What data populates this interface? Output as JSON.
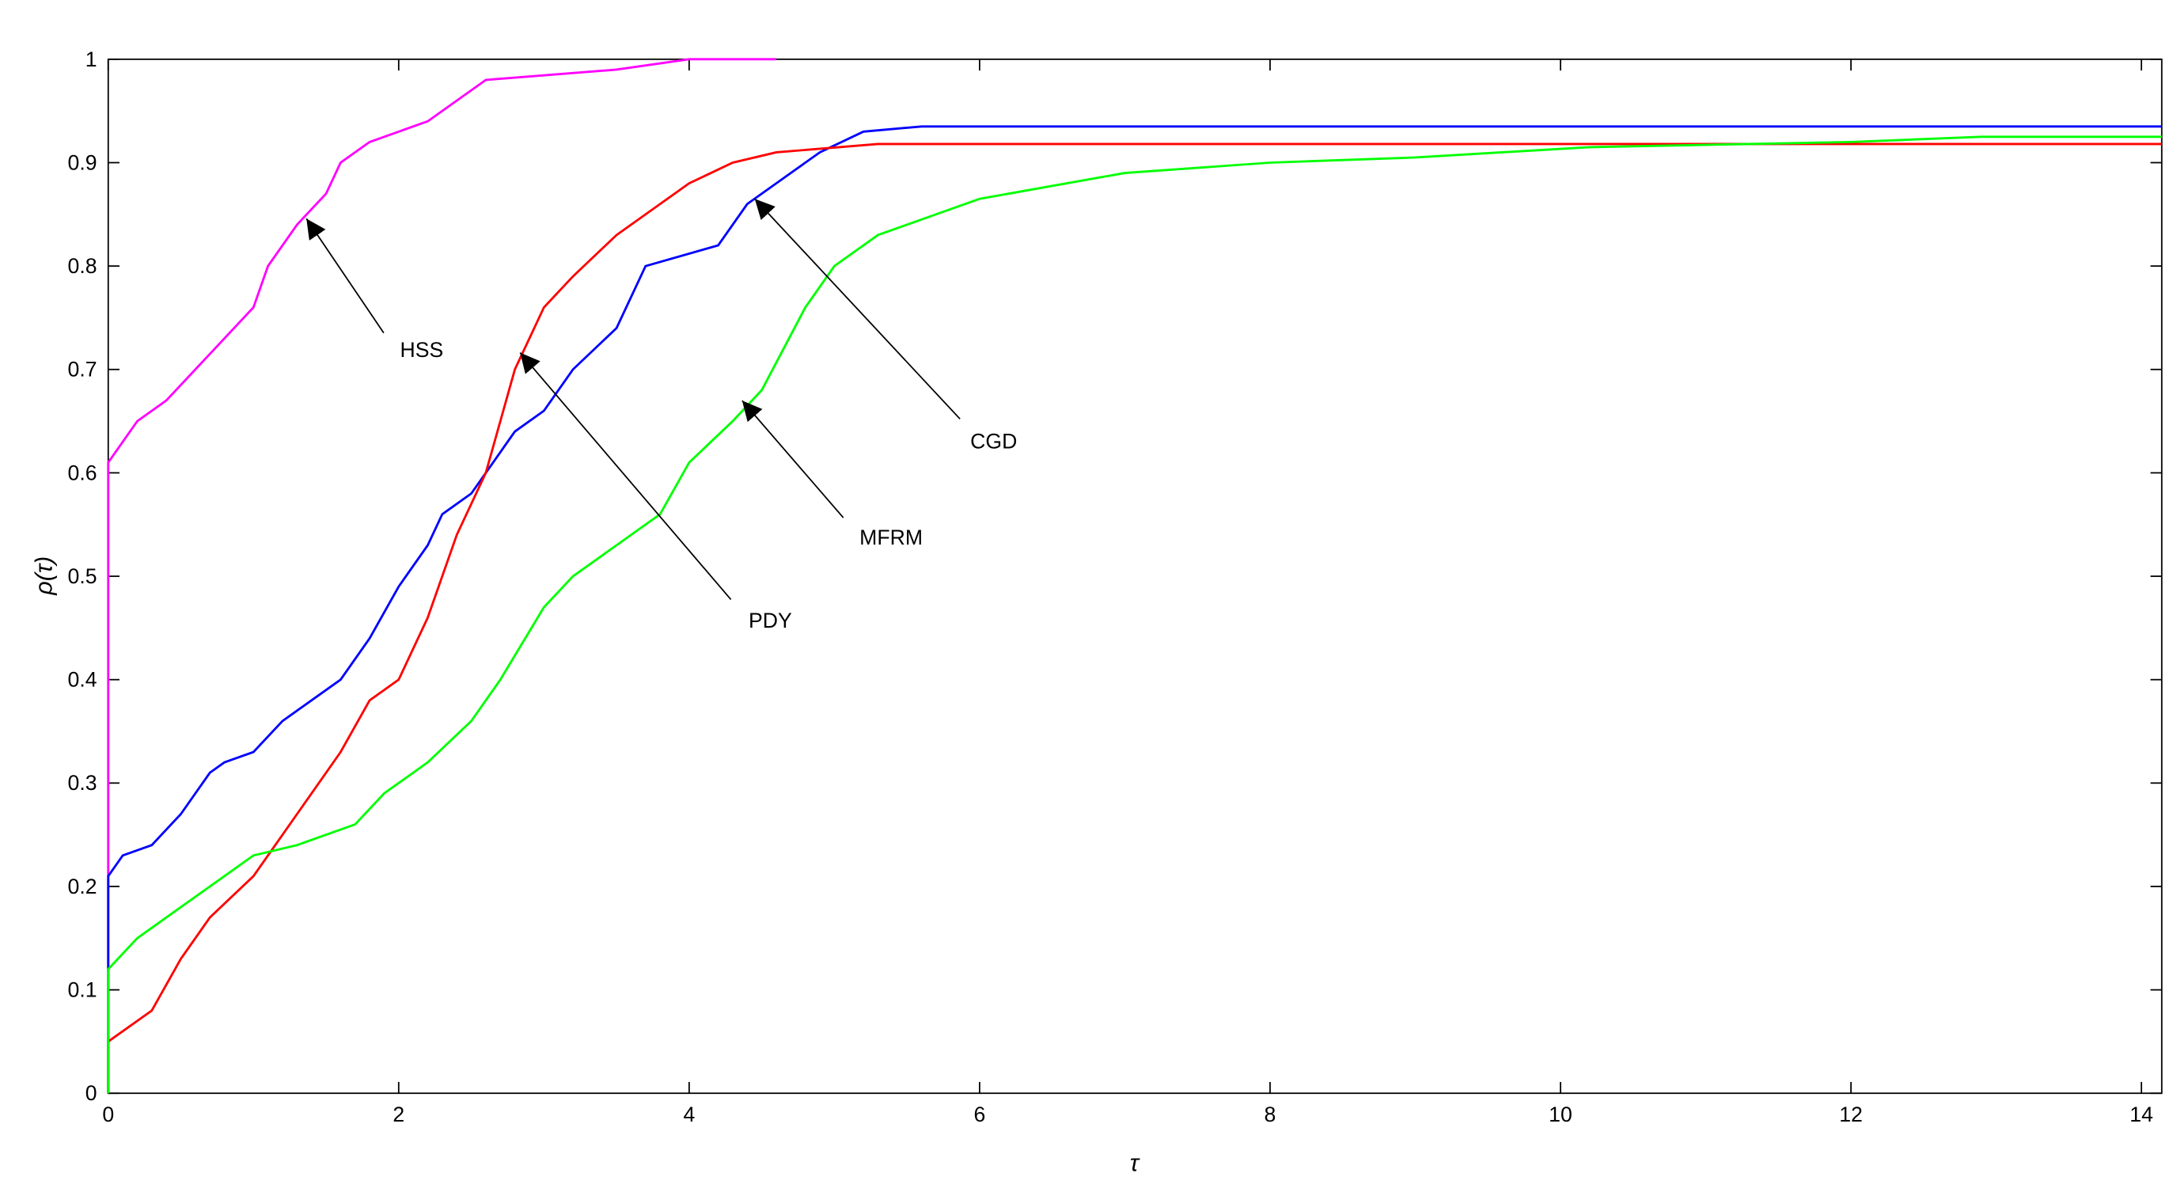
{
  "chart_data": {
    "type": "line",
    "xlabel": "τ",
    "ylabel": "ρ(τ)",
    "xlim": [
      0,
      14.14
    ],
    "ylim": [
      0,
      1
    ],
    "xticks": [
      0,
      2,
      4,
      6,
      8,
      10,
      12,
      14
    ],
    "yticks": [
      0,
      0.1,
      0.2,
      0.3,
      0.4,
      0.5,
      0.6,
      0.7,
      0.8,
      0.9,
      1
    ],
    "grid": false,
    "series": [
      {
        "name": "HSS",
        "color": "#ff00ff",
        "x": [
          0,
          0,
          0.2,
          0.4,
          0.6,
          0.8,
          1.0,
          1.1,
          1.3,
          1.5,
          1.6,
          1.8,
          2.2,
          2.4,
          2.6,
          3.5,
          4.0,
          4.6
        ],
        "values": [
          0,
          0.61,
          0.65,
          0.67,
          0.7,
          0.73,
          0.76,
          0.8,
          0.84,
          0.87,
          0.9,
          0.92,
          0.94,
          0.96,
          0.98,
          0.99,
          1.0,
          1.0
        ]
      },
      {
        "name": "CGD",
        "color": "#0000ff",
        "x": [
          0,
          0,
          0.1,
          0.3,
          0.5,
          0.7,
          0.8,
          1.0,
          1.2,
          1.4,
          1.6,
          1.8,
          2.0,
          2.2,
          2.3,
          2.5,
          2.6,
          2.8,
          3.0,
          3.2,
          3.5,
          3.7,
          4.2,
          4.4,
          4.6,
          4.9,
          5.2,
          5.6,
          14.14
        ],
        "values": [
          0,
          0.21,
          0.23,
          0.24,
          0.27,
          0.31,
          0.32,
          0.33,
          0.36,
          0.38,
          0.4,
          0.44,
          0.49,
          0.53,
          0.56,
          0.58,
          0.6,
          0.64,
          0.66,
          0.7,
          0.74,
          0.8,
          0.82,
          0.86,
          0.88,
          0.91,
          0.93,
          0.935,
          0.935
        ]
      },
      {
        "name": "PDY",
        "color": "#ff0000",
        "x": [
          0,
          0,
          0.3,
          0.5,
          0.7,
          1.0,
          1.2,
          1.4,
          1.6,
          1.8,
          2.0,
          2.2,
          2.4,
          2.6,
          2.8,
          3.0,
          3.2,
          3.5,
          3.8,
          4.0,
          4.3,
          4.6,
          5.3,
          14.14
        ],
        "values": [
          0,
          0.05,
          0.08,
          0.13,
          0.17,
          0.21,
          0.25,
          0.29,
          0.33,
          0.38,
          0.4,
          0.46,
          0.54,
          0.6,
          0.7,
          0.76,
          0.79,
          0.83,
          0.86,
          0.88,
          0.9,
          0.91,
          0.918,
          0.918
        ]
      },
      {
        "name": "MFRM",
        "color": "#00ff00",
        "x": [
          0,
          0,
          0.2,
          0.5,
          0.8,
          1.0,
          1.3,
          1.7,
          1.9,
          2.2,
          2.5,
          2.7,
          3.0,
          3.2,
          3.5,
          3.8,
          4.0,
          4.3,
          4.5,
          4.8,
          5.0,
          5.3,
          5.7,
          6.0,
          7.0,
          8.0,
          9.0,
          10.2,
          11.3,
          12.0,
          12.9,
          14.14
        ],
        "values": [
          0,
          0.12,
          0.15,
          0.18,
          0.21,
          0.23,
          0.24,
          0.26,
          0.29,
          0.32,
          0.36,
          0.4,
          0.47,
          0.5,
          0.53,
          0.56,
          0.61,
          0.65,
          0.68,
          0.76,
          0.8,
          0.83,
          0.85,
          0.865,
          0.89,
          0.9,
          0.905,
          0.915,
          0.918,
          0.92,
          0.925,
          0.925
        ]
      }
    ],
    "annotations": [
      "HSS",
      "PDY",
      "CGD",
      "MFRM"
    ]
  }
}
